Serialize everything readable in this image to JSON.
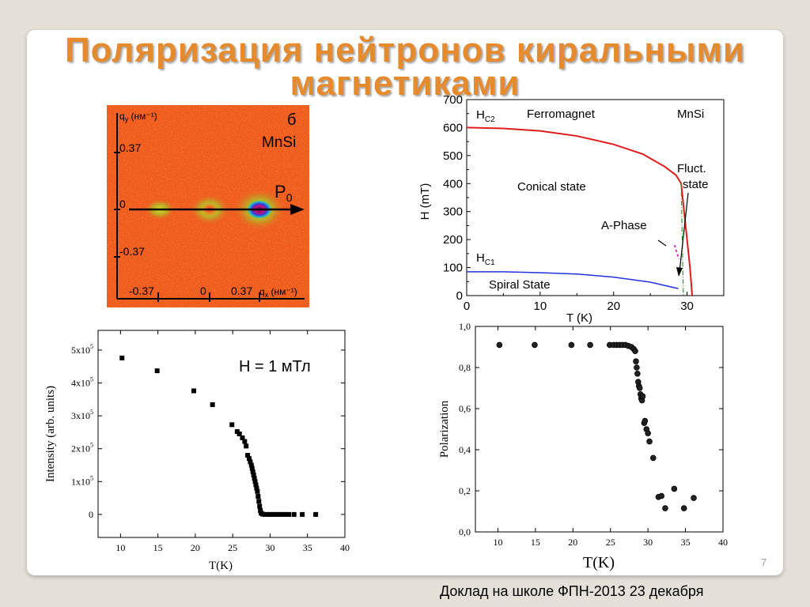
{
  "slide": {
    "title_line1": "Поляризация нейтронов киральными",
    "title_line2": "магнетиками",
    "page_number": "7",
    "footer": "Доклад на школе ФПН-2013 23 декабря"
  },
  "colors": {
    "title": "#e68a2e",
    "map_background": "#f05a1e",
    "hc2_line": "#e01b1b",
    "hc1_line": "#2233dd",
    "phase_line": "#2ca02c",
    "aphase": "#cc33cc"
  },
  "chart_data": [
    {
      "type": "heatmap",
      "panel_label": "б",
      "material": "MnSi",
      "vector_label": "P",
      "vector_subscript": "0",
      "xlabel": "q",
      "xlabel_sub": "x",
      "xunit": " (нм⁻¹)",
      "ylabel": "q",
      "ylabel_sub": "y",
      "yunit": " (нм⁻¹)",
      "x_ticks": [
        "-0.37",
        "0",
        "0.37"
      ],
      "y_ticks": [
        "0.37",
        "0",
        "-0.37"
      ],
      "peaks": [
        {
          "qx": -0.37,
          "qy": 0,
          "intensity": "low"
        },
        {
          "qx": 0,
          "qy": 0,
          "intensity": "medium"
        },
        {
          "qx": 0.37,
          "qy": 0,
          "intensity": "high"
        }
      ]
    },
    {
      "type": "line",
      "xlabel": "T (K)",
      "ylabel": "H (mT)",
      "xlim": [
        0,
        35
      ],
      "ylim": [
        0,
        700
      ],
      "x_ticks": [
        "0",
        "10",
        "20",
        "30"
      ],
      "y_ticks": [
        "0",
        "100",
        "200",
        "300",
        "400",
        "500",
        "600",
        "700"
      ],
      "series": [
        {
          "name": "H",
          "sub": "C2",
          "x": [
            0,
            5,
            10,
            15,
            20,
            24,
            27,
            28.5,
            29.2,
            29.6,
            30.0,
            30.4,
            30.7
          ],
          "y": [
            600,
            597,
            588,
            570,
            540,
            505,
            460,
            430,
            400,
            300,
            200,
            100,
            0
          ]
        },
        {
          "name": "H",
          "sub": "C1",
          "x": [
            0,
            5,
            10,
            15,
            20,
            25,
            28.8
          ],
          "y": [
            85,
            85,
            82,
            77,
            66,
            48,
            25
          ]
        },
        {
          "name": "",
          "x": [
            29.2,
            29.5
          ],
          "y": [
            400,
            0
          ]
        }
      ],
      "a_phase_points": {
        "x": [
          28.3,
          28.6,
          28.9
        ],
        "y": [
          180,
          155,
          130
        ]
      },
      "annotations": {
        "ferromagnet": "Ferromagnet",
        "material": "MnSi",
        "fluct1": "Fluct.",
        "fluct2": "state",
        "conical": "Conical state",
        "aphase": "A-Phase",
        "spiral": "Spiral State"
      }
    },
    {
      "type": "scatter",
      "xlabel": "T(K)",
      "ylabel": "Intensity (arb. units)",
      "annotation": "H = 1 мТл",
      "xlim": [
        7,
        40
      ],
      "ylim": [
        -70000,
        560000
      ],
      "x_ticks": [
        "10",
        "15",
        "20",
        "25",
        "30",
        "35",
        "40"
      ],
      "y_ticks": [
        {
          "value": 0,
          "mant": "0",
          "exp": ""
        },
        {
          "value": 100000,
          "mant": "1x10",
          "exp": "5"
        },
        {
          "value": 200000,
          "mant": "2x10",
          "exp": "5"
        },
        {
          "value": 300000,
          "mant": "3x10",
          "exp": "5"
        },
        {
          "value": 400000,
          "mant": "4x10",
          "exp": "5"
        },
        {
          "value": 500000,
          "mant": "5x10",
          "exp": "5"
        }
      ],
      "x": [
        10.2,
        14.9,
        19.8,
        22.3,
        24.9,
        25.6,
        25.9,
        26.3,
        26.6,
        26.8,
        27.0,
        27.2,
        27.35,
        27.5,
        27.6,
        27.7,
        27.8,
        27.9,
        28.0,
        28.1,
        28.2,
        28.3,
        28.4,
        28.5,
        28.6,
        28.7,
        28.8,
        29.0,
        29.3,
        29.7,
        30.1,
        30.5,
        30.9,
        31.3,
        31.7,
        32.1,
        32.5,
        33.2,
        34.3,
        36.1
      ],
      "y": [
        476000,
        437000,
        376000,
        334000,
        273000,
        252000,
        245000,
        233000,
        222000,
        208000,
        180000,
        170000,
        160000,
        150000,
        140000,
        130000,
        120000,
        110000,
        100000,
        90000,
        80000,
        70000,
        55000,
        40000,
        25000,
        12000,
        4000,
        1000,
        0,
        0,
        0,
        0,
        0,
        0,
        0,
        0,
        0,
        0,
        0,
        0
      ]
    },
    {
      "type": "scatter",
      "xlabel": "T(K)",
      "ylabel": "Polarization",
      "xlim": [
        7,
        40
      ],
      "ylim": [
        0,
        1.0
      ],
      "x_ticks": [
        "10",
        "15",
        "20",
        "25",
        "30",
        "35",
        "40"
      ],
      "y_ticks": [
        {
          "value": 0.0,
          "label": "0,0"
        },
        {
          "value": 0.2,
          "label": "0,2"
        },
        {
          "value": 0.4,
          "label": "0,4"
        },
        {
          "value": 0.6,
          "label": "0,6"
        },
        {
          "value": 0.8,
          "label": "0,8"
        },
        {
          "value": 1.0,
          "label": "1,0"
        }
      ],
      "x": [
        10.2,
        14.9,
        19.8,
        22.3,
        24.9,
        25.4,
        25.8,
        26.2,
        26.6,
        27.0,
        27.4,
        27.8,
        28.1,
        28.3,
        28.4,
        28.5,
        28.6,
        28.7,
        28.8,
        28.9,
        29.0,
        29.1,
        29.2,
        29.3,
        29.5,
        29.6,
        29.8,
        30.0,
        30.2,
        30.7,
        31.4,
        31.8,
        32.3,
        33.5,
        34.8,
        36.1
      ],
      "y": [
        0.91,
        0.91,
        0.91,
        0.91,
        0.91,
        0.91,
        0.91,
        0.91,
        0.91,
        0.91,
        0.905,
        0.9,
        0.89,
        0.88,
        0.83,
        0.8,
        0.77,
        0.73,
        0.71,
        0.7,
        0.67,
        0.65,
        0.64,
        0.66,
        0.53,
        0.54,
        0.5,
        0.48,
        0.44,
        0.36,
        0.17,
        0.175,
        0.115,
        0.21,
        0.115,
        0.165
      ]
    }
  ]
}
